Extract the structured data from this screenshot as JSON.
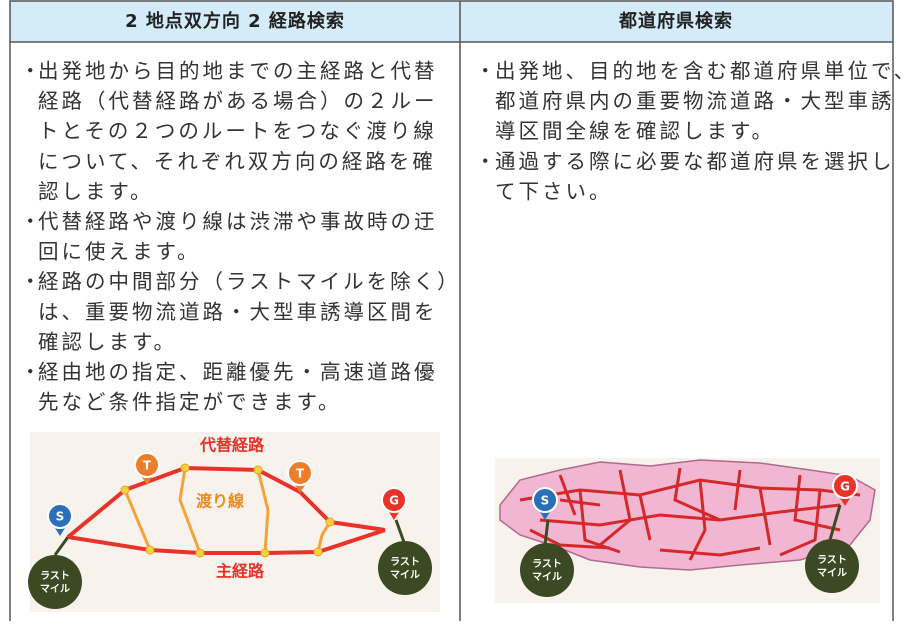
{
  "table": {
    "headers": [
      "2 地点双方向 2 経路検索",
      "都道府県検索"
    ],
    "bullet": "・",
    "left_items": [
      [
        "出発地から目的地までの主経路と代替",
        "経路（代替経路がある場合）の２ルー",
        "トとその２つのルートをつなぐ渡り線",
        "について、それぞれ双方向の経路を確",
        "認します。"
      ],
      [
        "代替経路や渡り線は渋滞や事故時の迂",
        "回に使えます。"
      ],
      [
        "経路の中間部分（ラストマイルを除く）",
        "は、重要物流道路・大型車誘導区間を",
        "確認します。"
      ],
      [
        "経由地の指定、距離優先・高速道路優",
        "先など条件指定ができます。"
      ]
    ],
    "right_items": [
      [
        "出発地、目的地を含む都道府県単位で、",
        "都道府県内の重要物流道路・大型車誘",
        "導区間全線を確認します。"
      ],
      [
        "通過する際に必要な都道府県を選択し",
        "て下さい。"
      ]
    ]
  },
  "left_diagram": {
    "alternative_label": "代替経路",
    "crossover_label": "渡り線",
    "main_label": "主経路",
    "start": "S",
    "via": [
      "T",
      "T"
    ],
    "goal": "G",
    "last_mile": [
      "ラスト",
      "マイル"
    ]
  },
  "right_diagram": {
    "start": "S",
    "goal": "G",
    "last_mile": [
      "ラスト",
      "マイル"
    ]
  }
}
